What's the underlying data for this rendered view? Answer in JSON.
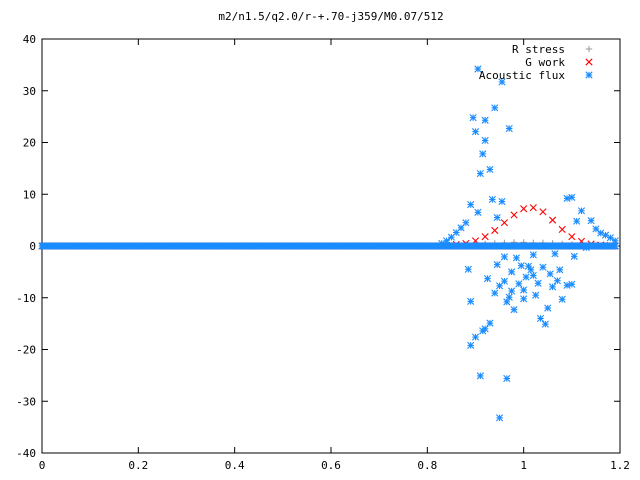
{
  "chart_data": {
    "type": "scatter",
    "title": "m2/n1.5/q2.0/r-+.70-j359/M0.07/512",
    "xlabel": "",
    "ylabel": "",
    "xlim": [
      0,
      1.2
    ],
    "ylim": [
      -40,
      40
    ],
    "x_ticks": [
      "0",
      "0.2",
      "0.4",
      "0.6",
      "0.8",
      "1",
      "1.2"
    ],
    "y_ticks": [
      "40",
      "30",
      "20",
      "10",
      "0",
      "-10",
      "-20",
      "-30",
      "-40"
    ],
    "grid": false,
    "legend_position": "top-right",
    "series": [
      {
        "name": "R stress",
        "marker": "plus",
        "color": "#a0a0a0",
        "x_range": [
          0.0,
          1.19
        ],
        "samples": 512,
        "points": [
          [
            0.85,
            0.1
          ],
          [
            0.88,
            0.2
          ],
          [
            0.9,
            0.3
          ],
          [
            0.92,
            0.4
          ],
          [
            0.94,
            0.5
          ],
          [
            0.96,
            0.6
          ],
          [
            0.98,
            0.7
          ],
          [
            1.0,
            0.7
          ],
          [
            1.02,
            0.6
          ],
          [
            1.04,
            0.6
          ],
          [
            1.06,
            0.5
          ],
          [
            1.08,
            0.4
          ],
          [
            1.1,
            0.3
          ],
          [
            1.12,
            0.2
          ],
          [
            1.14,
            0.1
          ]
        ]
      },
      {
        "name": "G work",
        "marker": "cross",
        "color": "#ff0000",
        "x_range": [
          0.0,
          1.19
        ],
        "samples": 512,
        "points": [
          [
            0.84,
            0.1
          ],
          [
            0.86,
            0.3
          ],
          [
            0.88,
            0.5
          ],
          [
            0.9,
            1.0
          ],
          [
            0.92,
            1.8
          ],
          [
            0.94,
            3.0
          ],
          [
            0.96,
            4.5
          ],
          [
            0.98,
            6.0
          ],
          [
            1.0,
            7.2
          ],
          [
            1.02,
            7.4
          ],
          [
            1.04,
            6.6
          ],
          [
            1.06,
            5.0
          ],
          [
            1.08,
            3.2
          ],
          [
            1.1,
            1.8
          ],
          [
            1.12,
            0.9
          ],
          [
            1.14,
            0.4
          ],
          [
            1.16,
            0.2
          ],
          [
            1.18,
            0.1
          ]
        ]
      },
      {
        "name": "Acoustic flux",
        "marker": "star",
        "color": "#1a8cff",
        "x_range": [
          0.0,
          1.19
        ],
        "samples": 512,
        "points": [
          [
            0.83,
            0.5
          ],
          [
            0.84,
            1.0
          ],
          [
            0.85,
            1.7
          ],
          [
            0.86,
            2.6
          ],
          [
            0.87,
            3.5
          ],
          [
            0.88,
            4.5
          ],
          [
            0.885,
            -4.5
          ],
          [
            0.89,
            8.0
          ],
          [
            0.89,
            -10.7
          ],
          [
            0.89,
            -19.2
          ],
          [
            0.895,
            24.8
          ],
          [
            0.9,
            22.1
          ],
          [
            0.9,
            -17.6
          ],
          [
            0.905,
            6.5
          ],
          [
            0.905,
            34.2
          ],
          [
            0.91,
            -25.1
          ],
          [
            0.91,
            14.0
          ],
          [
            0.915,
            -16.4
          ],
          [
            0.915,
            17.8
          ],
          [
            0.92,
            24.3
          ],
          [
            0.92,
            20.4
          ],
          [
            0.92,
            -16.0
          ],
          [
            0.925,
            -6.3
          ],
          [
            0.93,
            14.8
          ],
          [
            0.93,
            -14.9
          ],
          [
            0.935,
            9.0
          ],
          [
            0.94,
            26.7
          ],
          [
            0.94,
            -9.1
          ],
          [
            0.945,
            5.5
          ],
          [
            0.945,
            -3.6
          ],
          [
            0.95,
            -33.2
          ],
          [
            0.95,
            -7.7
          ],
          [
            0.955,
            8.6
          ],
          [
            0.955,
            31.7
          ],
          [
            0.96,
            -2.1
          ],
          [
            0.96,
            -6.8
          ],
          [
            0.965,
            -10.8
          ],
          [
            0.965,
            -25.6
          ],
          [
            0.97,
            22.7
          ],
          [
            0.97,
            -9.9
          ],
          [
            0.975,
            -5.0
          ],
          [
            0.975,
            -8.7
          ],
          [
            0.98,
            -12.3
          ],
          [
            0.985,
            -2.3
          ],
          [
            0.99,
            -7.3
          ],
          [
            0.995,
            -3.8
          ],
          [
            1.0,
            -8.5
          ],
          [
            1.0,
            -10.2
          ],
          [
            1.005,
            -6.0
          ],
          [
            1.01,
            -3.9
          ],
          [
            1.015,
            -4.6
          ],
          [
            1.02,
            -5.7
          ],
          [
            1.02,
            -1.7
          ],
          [
            1.025,
            -9.5
          ],
          [
            1.03,
            -7.2
          ],
          [
            1.035,
            -14.0
          ],
          [
            1.04,
            -4.1
          ],
          [
            1.045,
            -15.1
          ],
          [
            1.05,
            -12.0
          ],
          [
            1.055,
            -5.4
          ],
          [
            1.06,
            -7.9
          ],
          [
            1.065,
            -1.5
          ],
          [
            1.07,
            -6.7
          ],
          [
            1.075,
            -4.6
          ],
          [
            1.08,
            -10.3
          ],
          [
            1.09,
            -7.6
          ],
          [
            1.09,
            9.2
          ],
          [
            1.1,
            -7.4
          ],
          [
            1.1,
            9.4
          ],
          [
            1.105,
            -2.0
          ],
          [
            1.11,
            4.8
          ],
          [
            1.12,
            6.8
          ],
          [
            1.13,
            -0.3
          ],
          [
            1.14,
            4.9
          ],
          [
            1.15,
            3.3
          ],
          [
            1.16,
            2.5
          ],
          [
            1.17,
            2.1
          ],
          [
            1.18,
            1.6
          ],
          [
            1.19,
            1.0
          ]
        ]
      }
    ]
  }
}
